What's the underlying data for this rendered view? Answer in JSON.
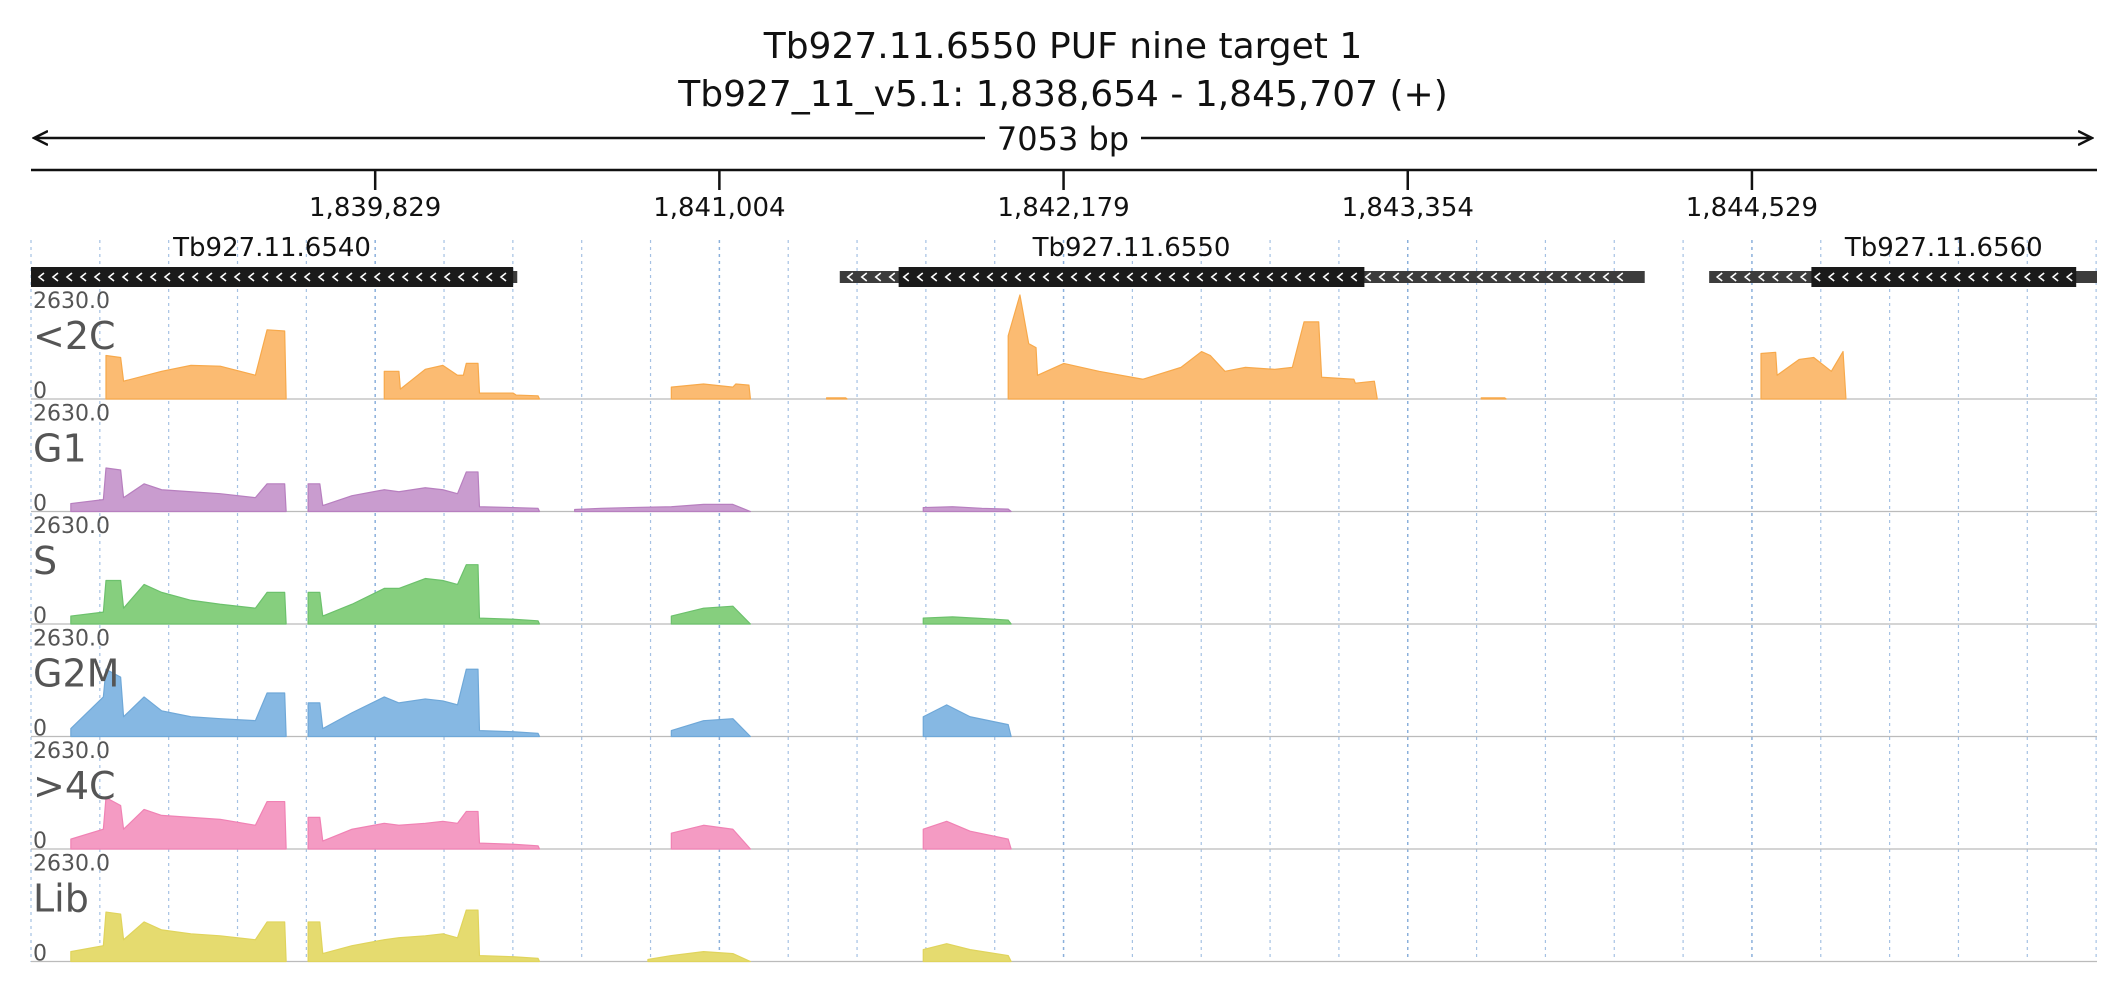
{
  "title": {
    "line1": "Tb927.11.6550  PUF nine target 1",
    "line2": "Tb927_11_v5.1: 1,838,654 - 1,845,707 (+)"
  },
  "span_label": "7053 bp",
  "colors": {
    "text": "#111111",
    "track_label": "#555555",
    "grid": "#7fa8d8",
    "gene_dark": "#1a1a1a",
    "gene_light": "#3c3c3c"
  },
  "chart_data": {
    "type": "area",
    "x_range": [
      1838654,
      1845707
    ],
    "y_range": [
      0,
      2630.0
    ],
    "y_max_label": "2630.0",
    "y_min_label": "0",
    "x_ticks": [
      {
        "pos": 1839829,
        "label": "1,839,829"
      },
      {
        "pos": 1841004,
        "label": "1,841,004"
      },
      {
        "pos": 1842179,
        "label": "1,842,179"
      },
      {
        "pos": 1843354,
        "label": "1,843,354"
      },
      {
        "pos": 1844529,
        "label": "1,844,529"
      }
    ],
    "genes": [
      {
        "name": "Tb927.11.6540",
        "strand": "-",
        "start": 1838654,
        "end": 1840314,
        "cds_start": 1838654,
        "cds_end": 1840300
      },
      {
        "name": "Tb927.11.6550",
        "strand": "-",
        "start": 1841415,
        "end": 1844163,
        "cds_start": 1841616,
        "cds_end": 1843206
      },
      {
        "name": "Tb927.11.6560",
        "strand": "-",
        "start": 1844383,
        "end": 1845707,
        "cds_start": 1844732,
        "cds_end": 1845636
      }
    ],
    "series": [
      {
        "name": "<2C",
        "color": "#f7a94b",
        "fill": "#fbbb72",
        "points": [
          [
            1838901,
            0
          ],
          [
            1838910,
            1100
          ],
          [
            1838960,
            1050
          ],
          [
            1838970,
            450
          ],
          [
            1839100,
            700
          ],
          [
            1839200,
            850
          ],
          [
            1839300,
            830
          ],
          [
            1839420,
            600
          ],
          [
            1839460,
            1750
          ],
          [
            1839520,
            1720
          ],
          [
            1839525,
            0
          ],
          [
            1839855,
            0
          ],
          [
            1839860,
            700
          ],
          [
            1839910,
            700
          ],
          [
            1839915,
            250
          ],
          [
            1840000,
            750
          ],
          [
            1840060,
            850
          ],
          [
            1840110,
            600
          ],
          [
            1840130,
            600
          ],
          [
            1840140,
            900
          ],
          [
            1840180,
            900
          ],
          [
            1840185,
            150
          ],
          [
            1840300,
            150
          ],
          [
            1840310,
            100
          ],
          [
            1840385,
            80
          ],
          [
            1840390,
            0
          ],
          [
            1840835,
            0
          ],
          [
            1840840,
            300
          ],
          [
            1840950,
            380
          ],
          [
            1841050,
            300
          ],
          [
            1841060,
            380
          ],
          [
            1841105,
            350
          ],
          [
            1841110,
            0
          ],
          [
            1841365,
            0
          ],
          [
            1841370,
            30
          ],
          [
            1841435,
            30
          ],
          [
            1841440,
            0
          ],
          [
            1841985,
            0
          ],
          [
            1841990,
            1600
          ],
          [
            1842030,
            2630
          ],
          [
            1842060,
            1400
          ],
          [
            1842085,
            1300
          ],
          [
            1842090,
            600
          ],
          [
            1842180,
            900
          ],
          [
            1842300,
            700
          ],
          [
            1842450,
            500
          ],
          [
            1842580,
            800
          ],
          [
            1842650,
            1200
          ],
          [
            1842680,
            1100
          ],
          [
            1842730,
            700
          ],
          [
            1842800,
            800
          ],
          [
            1842900,
            750
          ],
          [
            1842960,
            800
          ],
          [
            1843000,
            1950
          ],
          [
            1843050,
            1950
          ],
          [
            1843060,
            550
          ],
          [
            1843170,
            500
          ],
          [
            1843175,
            400
          ],
          [
            1843240,
            450
          ],
          [
            1843250,
            0
          ],
          [
            1843600,
            0
          ],
          [
            1843605,
            30
          ],
          [
            1843685,
            30
          ],
          [
            1843690,
            0
          ],
          [
            1844555,
            0
          ],
          [
            1844560,
            1150
          ],
          [
            1844610,
            1180
          ],
          [
            1844615,
            600
          ],
          [
            1844690,
            1000
          ],
          [
            1844740,
            1050
          ],
          [
            1844800,
            700
          ],
          [
            1844840,
            1200
          ],
          [
            1844850,
            0
          ]
        ]
      },
      {
        "name": "G1",
        "color": "#b77fbf",
        "fill": "#c99ccf",
        "points": [
          [
            1838780,
            0
          ],
          [
            1838790,
            200
          ],
          [
            1838901,
            300
          ],
          [
            1838910,
            1100
          ],
          [
            1838960,
            1050
          ],
          [
            1838970,
            350
          ],
          [
            1839040,
            700
          ],
          [
            1839100,
            550
          ],
          [
            1839200,
            500
          ],
          [
            1839300,
            450
          ],
          [
            1839420,
            350
          ],
          [
            1839460,
            700
          ],
          [
            1839520,
            700
          ],
          [
            1839525,
            0
          ],
          [
            1839590,
            0
          ],
          [
            1839600,
            700
          ],
          [
            1839640,
            700
          ],
          [
            1839650,
            150
          ],
          [
            1839750,
            400
          ],
          [
            1839860,
            550
          ],
          [
            1839910,
            500
          ],
          [
            1840000,
            600
          ],
          [
            1840060,
            550
          ],
          [
            1840110,
            450
          ],
          [
            1840140,
            1000
          ],
          [
            1840180,
            1000
          ],
          [
            1840185,
            120
          ],
          [
            1840300,
            100
          ],
          [
            1840385,
            80
          ],
          [
            1840390,
            0
          ],
          [
            1840500,
            0
          ],
          [
            1840510,
            50
          ],
          [
            1840600,
            80
          ],
          [
            1840700,
            100
          ],
          [
            1840840,
            120
          ],
          [
            1840950,
            180
          ],
          [
            1841050,
            180
          ],
          [
            1841110,
            0
          ],
          [
            1841690,
            0
          ],
          [
            1841700,
            100
          ],
          [
            1841800,
            120
          ],
          [
            1841900,
            80
          ],
          [
            1841990,
            60
          ],
          [
            1842000,
            0
          ]
        ]
      },
      {
        "name": "S",
        "color": "#6cc16c",
        "fill": "#86cf7e",
        "points": [
          [
            1838780,
            0
          ],
          [
            1838790,
            200
          ],
          [
            1838901,
            300
          ],
          [
            1838910,
            1100
          ],
          [
            1838960,
            1100
          ],
          [
            1838970,
            400
          ],
          [
            1839040,
            1000
          ],
          [
            1839100,
            800
          ],
          [
            1839200,
            600
          ],
          [
            1839300,
            500
          ],
          [
            1839420,
            400
          ],
          [
            1839460,
            800
          ],
          [
            1839520,
            800
          ],
          [
            1839525,
            0
          ],
          [
            1839590,
            0
          ],
          [
            1839600,
            800
          ],
          [
            1839640,
            800
          ],
          [
            1839650,
            200
          ],
          [
            1839750,
            500
          ],
          [
            1839860,
            900
          ],
          [
            1839910,
            900
          ],
          [
            1840000,
            1150
          ],
          [
            1840060,
            1100
          ],
          [
            1840110,
            1000
          ],
          [
            1840140,
            1500
          ],
          [
            1840180,
            1500
          ],
          [
            1840185,
            150
          ],
          [
            1840300,
            120
          ],
          [
            1840385,
            80
          ],
          [
            1840390,
            0
          ],
          [
            1840800,
            0
          ],
          [
            1840840,
            200
          ],
          [
            1840950,
            400
          ],
          [
            1841050,
            450
          ],
          [
            1841110,
            0
          ],
          [
            1841690,
            0
          ],
          [
            1841700,
            150
          ],
          [
            1841800,
            180
          ],
          [
            1841900,
            140
          ],
          [
            1841990,
            100
          ],
          [
            1842000,
            0
          ]
        ]
      },
      {
        "name": "G2M",
        "color": "#6fa8d8",
        "fill": "#86b8e3",
        "points": [
          [
            1838780,
            0
          ],
          [
            1838790,
            200
          ],
          [
            1838901,
            1000
          ],
          [
            1838910,
            1700
          ],
          [
            1838960,
            1500
          ],
          [
            1838970,
            500
          ],
          [
            1839040,
            1000
          ],
          [
            1839100,
            650
          ],
          [
            1839200,
            500
          ],
          [
            1839300,
            450
          ],
          [
            1839420,
            400
          ],
          [
            1839460,
            1100
          ],
          [
            1839520,
            1100
          ],
          [
            1839525,
            0
          ],
          [
            1839590,
            0
          ],
          [
            1839600,
            850
          ],
          [
            1839640,
            850
          ],
          [
            1839650,
            200
          ],
          [
            1839750,
            600
          ],
          [
            1839860,
            1000
          ],
          [
            1839910,
            850
          ],
          [
            1840000,
            950
          ],
          [
            1840060,
            900
          ],
          [
            1840110,
            800
          ],
          [
            1840140,
            1700
          ],
          [
            1840180,
            1700
          ],
          [
            1840185,
            150
          ],
          [
            1840300,
            120
          ],
          [
            1840385,
            80
          ],
          [
            1840390,
            0
          ],
          [
            1840800,
            0
          ],
          [
            1840840,
            150
          ],
          [
            1840950,
            400
          ],
          [
            1841050,
            450
          ],
          [
            1841110,
            0
          ],
          [
            1841690,
            0
          ],
          [
            1841700,
            500
          ],
          [
            1841780,
            800
          ],
          [
            1841860,
            500
          ],
          [
            1841990,
            300
          ],
          [
            1842000,
            0
          ]
        ]
      },
      {
        "name": ">4C",
        "color": "#f082b4",
        "fill": "#f49bc3",
        "points": [
          [
            1838780,
            0
          ],
          [
            1838790,
            250
          ],
          [
            1838901,
            500
          ],
          [
            1838910,
            1300
          ],
          [
            1838960,
            1100
          ],
          [
            1838970,
            500
          ],
          [
            1839040,
            1000
          ],
          [
            1839100,
            850
          ],
          [
            1839200,
            800
          ],
          [
            1839300,
            750
          ],
          [
            1839420,
            600
          ],
          [
            1839460,
            1200
          ],
          [
            1839520,
            1200
          ],
          [
            1839525,
            0
          ],
          [
            1839590,
            0
          ],
          [
            1839600,
            800
          ],
          [
            1839640,
            800
          ],
          [
            1839650,
            200
          ],
          [
            1839750,
            500
          ],
          [
            1839860,
            650
          ],
          [
            1839910,
            600
          ],
          [
            1840000,
            650
          ],
          [
            1840060,
            700
          ],
          [
            1840110,
            650
          ],
          [
            1840140,
            950
          ],
          [
            1840180,
            950
          ],
          [
            1840185,
            150
          ],
          [
            1840300,
            120
          ],
          [
            1840385,
            80
          ],
          [
            1840390,
            0
          ],
          [
            1840800,
            0
          ],
          [
            1840840,
            400
          ],
          [
            1840950,
            600
          ],
          [
            1841050,
            500
          ],
          [
            1841110,
            0
          ],
          [
            1841690,
            0
          ],
          [
            1841700,
            500
          ],
          [
            1841780,
            700
          ],
          [
            1841860,
            450
          ],
          [
            1841990,
            250
          ],
          [
            1842000,
            0
          ]
        ]
      },
      {
        "name": "Lib",
        "color": "#e0d45c",
        "fill": "#e5db6f",
        "points": [
          [
            1838780,
            0
          ],
          [
            1838790,
            250
          ],
          [
            1838901,
            400
          ],
          [
            1838910,
            1250
          ],
          [
            1838960,
            1200
          ],
          [
            1838970,
            550
          ],
          [
            1839040,
            1000
          ],
          [
            1839100,
            800
          ],
          [
            1839200,
            700
          ],
          [
            1839300,
            650
          ],
          [
            1839420,
            550
          ],
          [
            1839460,
            1000
          ],
          [
            1839520,
            1000
          ],
          [
            1839525,
            0
          ],
          [
            1839590,
            0
          ],
          [
            1839600,
            1000
          ],
          [
            1839640,
            1000
          ],
          [
            1839650,
            200
          ],
          [
            1839750,
            400
          ],
          [
            1839860,
            550
          ],
          [
            1839910,
            600
          ],
          [
            1840000,
            650
          ],
          [
            1840060,
            700
          ],
          [
            1840110,
            600
          ],
          [
            1840140,
            1300
          ],
          [
            1840180,
            1300
          ],
          [
            1840185,
            150
          ],
          [
            1840300,
            120
          ],
          [
            1840385,
            80
          ],
          [
            1840390,
            0
          ],
          [
            1840750,
            0
          ],
          [
            1840760,
            50
          ],
          [
            1840840,
            150
          ],
          [
            1840950,
            250
          ],
          [
            1841050,
            200
          ],
          [
            1841110,
            0
          ],
          [
            1841690,
            0
          ],
          [
            1841700,
            300
          ],
          [
            1841780,
            450
          ],
          [
            1841860,
            300
          ],
          [
            1841990,
            150
          ],
          [
            1842000,
            0
          ]
        ]
      }
    ]
  }
}
